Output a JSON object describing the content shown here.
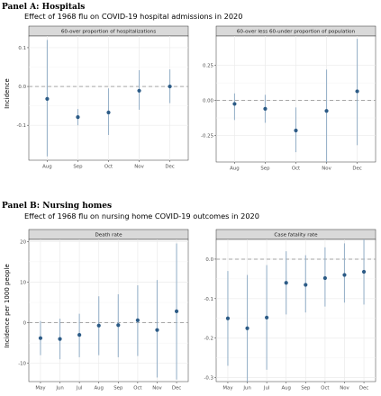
{
  "panels": [
    {
      "heading": "Panel A: Hospitals",
      "subtitle": "Effect of 1968 flu on COVID-19 hospital admissions in 2020"
    },
    {
      "heading": "Panel B: Nursing homes",
      "subtitle": "Effect of 1968 flu on nursing home COVID-19 outcomes in 2020"
    }
  ],
  "colors": {
    "point": "#2c5b86",
    "ci": "#9ab3ca",
    "zero_line": "#a6a6a6",
    "strip": "#d9d9d9",
    "grid": "#ebebeb"
  },
  "chart_data": [
    {
      "type": "scatter",
      "title": "60-over proportion of hospitalizations",
      "ylabel": "Incidence",
      "xlabel": "",
      "categories": [
        "Aug",
        "Sep",
        "Oct",
        "Nov",
        "Dec"
      ],
      "values": [
        -0.032,
        -0.079,
        -0.067,
        -0.011,
        0.0
      ],
      "ci_low": [
        -0.18,
        -0.1,
        -0.125,
        -0.06,
        -0.043
      ],
      "ci_high": [
        0.12,
        -0.058,
        -0.005,
        0.042,
        0.044
      ],
      "ylim": [
        -0.19,
        0.13
      ],
      "yticks": [
        -0.1,
        0.0,
        0.1
      ],
      "ytick_labels": [
        "-0.1",
        "0.0",
        "0.1"
      ],
      "reference_line": 0,
      "grid": true
    },
    {
      "type": "scatter",
      "title": "60-over less 60-under proportion of population",
      "ylabel": "",
      "xlabel": "",
      "categories": [
        "Aug",
        "Sep",
        "Oct",
        "Nov",
        "Dec"
      ],
      "values": [
        -0.025,
        -0.06,
        -0.215,
        -0.075,
        0.065
      ],
      "ci_low": [
        -0.14,
        -0.16,
        -0.37,
        -0.44,
        -0.32
      ],
      "ci_high": [
        0.05,
        0.04,
        -0.05,
        0.22,
        0.44
      ],
      "ylim": [
        -0.44,
        0.46
      ],
      "yticks": [
        -0.25,
        0.0,
        0.25
      ],
      "ytick_labels": [
        "-0.25",
        "0.00",
        "0.25"
      ],
      "reference_line": 0,
      "grid": true
    },
    {
      "type": "scatter",
      "title": "Death rate",
      "ylabel": "Incidence per 1000 people",
      "xlabel": "",
      "categories": [
        "May",
        "Jun",
        "Jul",
        "Aug",
        "Sep",
        "Oct",
        "Nov",
        "Dec"
      ],
      "values": [
        -3.8,
        -4.0,
        -3.0,
        -0.7,
        -0.6,
        0.6,
        -1.8,
        2.8
      ],
      "ci_low": [
        -8.0,
        -9.0,
        -8.5,
        -8.0,
        -8.5,
        -8.2,
        -13.5,
        -14.0
      ],
      "ci_high": [
        0.4,
        1.0,
        2.2,
        6.5,
        7.0,
        9.2,
        10.5,
        19.5
      ],
      "ylim": [
        -14.5,
        20.5
      ],
      "yticks": [
        -10,
        0,
        10,
        20
      ],
      "ytick_labels": [
        "-10",
        "0",
        "10",
        "20"
      ],
      "reference_line": 0,
      "grid": true
    },
    {
      "type": "scatter",
      "title": "Case fatality rate",
      "ylabel": "",
      "xlabel": "",
      "categories": [
        "May",
        "Jun",
        "Jul",
        "Aug",
        "Sep",
        "Oct",
        "Nov",
        "Dec"
      ],
      "values": [
        -0.15,
        -0.175,
        -0.148,
        -0.06,
        -0.065,
        -0.048,
        -0.04,
        -0.032
      ],
      "ci_low": [
        -0.27,
        -0.31,
        -0.28,
        -0.14,
        -0.135,
        -0.12,
        -0.11,
        -0.115
      ],
      "ci_high": [
        -0.03,
        -0.04,
        -0.015,
        0.02,
        0.01,
        0.03,
        0.04,
        0.05
      ],
      "ylim": [
        -0.31,
        0.05
      ],
      "yticks": [
        -0.3,
        -0.2,
        -0.1,
        0.0
      ],
      "ytick_labels": [
        "-0.3",
        "-0.2",
        "-0.1",
        "0.0"
      ],
      "reference_line": 0,
      "grid": true
    }
  ]
}
